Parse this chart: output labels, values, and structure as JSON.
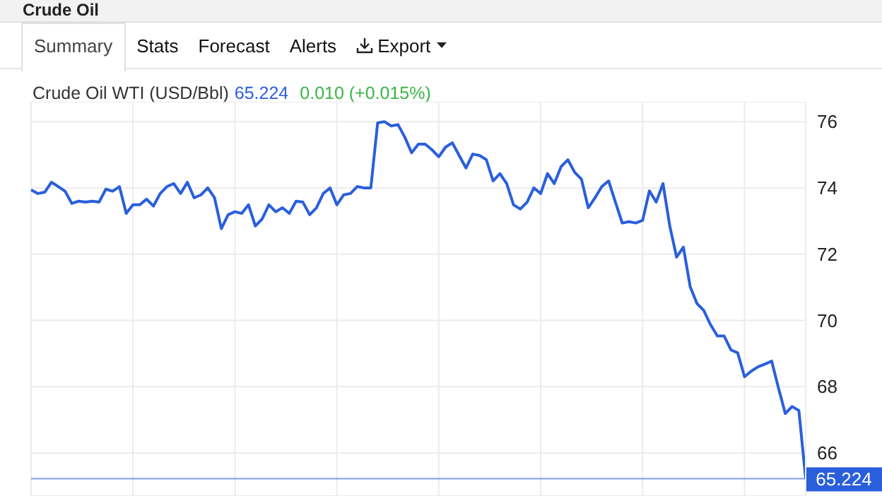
{
  "chart_data": {
    "type": "line",
    "title": "Crude Oil WTI (USD/Bbl)",
    "subtitle": "65.224",
    "annotations": [
      "Crude Oil",
      "Summary",
      "Stats",
      "Forecast",
      "Alerts",
      "Export",
      "0.010 (+0.015%)"
    ],
    "categories": [
      null,
      null,
      null,
      null,
      null,
      null,
      null,
      null,
      null,
      null,
      null,
      null,
      null,
      null,
      null,
      null,
      null,
      null,
      null,
      null,
      null,
      null,
      null,
      null,
      null,
      null,
      null,
      null,
      null,
      null,
      null,
      null,
      null,
      null,
      null,
      null,
      null,
      null,
      null,
      null,
      null,
      null,
      null,
      null,
      null,
      null,
      null,
      null,
      null,
      null,
      null,
      null,
      null,
      null,
      null,
      null,
      null,
      null,
      null,
      null,
      null,
      null,
      null,
      null,
      null,
      null,
      null,
      null,
      null,
      null,
      null,
      null,
      null,
      null,
      null,
      null,
      null,
      null,
      null,
      null,
      null,
      null,
      null,
      null,
      null,
      null,
      null,
      null,
      null,
      null,
      null,
      null,
      null,
      null,
      null,
      null,
      null,
      null,
      null,
      null,
      null,
      null,
      null,
      null,
      null,
      null,
      null,
      null,
      null,
      null,
      null,
      null,
      null,
      null,
      null
    ],
    "series": [
      {
        "color": "#2a5fdc",
        "values": [
          73.94,
          73.83,
          73.87,
          74.17,
          74.04,
          73.9,
          73.53,
          73.6,
          73.57,
          73.6,
          73.57,
          73.96,
          73.9,
          74.04,
          73.23,
          73.49,
          73.49,
          73.66,
          73.45,
          73.83,
          74.04,
          74.13,
          73.83,
          74.17,
          73.7,
          73.79,
          74.0,
          73.7,
          72.77,
          73.19,
          73.28,
          73.23,
          73.49,
          72.85,
          73.06,
          73.49,
          73.28,
          73.4,
          73.23,
          73.6,
          73.57,
          73.19,
          73.4,
          73.83,
          74.0,
          73.49,
          73.79,
          73.83,
          74.04,
          74.0,
          74.0,
          75.96,
          76.0,
          75.87,
          75.91,
          75.53,
          75.06,
          75.32,
          75.32,
          75.15,
          74.94,
          75.23,
          75.36,
          74.98,
          74.6,
          75.02,
          74.98,
          74.85,
          74.21,
          74.43,
          74.13,
          73.49,
          73.36,
          73.57,
          74.0,
          73.83,
          74.43,
          74.13,
          74.64,
          74.85,
          74.47,
          74.26,
          73.4,
          73.7,
          74.04,
          74.21,
          73.57,
          72.94,
          72.98,
          72.94,
          73.02,
          73.91,
          73.57,
          74.13,
          72.85,
          71.91,
          72.21,
          71.02,
          70.51,
          70.3,
          69.87,
          69.53,
          69.53,
          69.11,
          69.02,
          68.3,
          68.47,
          68.6,
          68.68,
          68.77,
          67.96,
          67.19,
          67.4,
          67.28,
          65.224
        ]
      }
    ],
    "ylim": [
      64.7,
      76.6
    ],
    "yticks": [
      66,
      68,
      70,
      72,
      74,
      76
    ],
    "tick_labels": "y",
    "grid": true,
    "marker": "none",
    "line_style": "solid",
    "ref_lines": [
      {
        "axis": "y",
        "value": 65.224,
        "label": "65.224",
        "color": "#2a5fdc"
      }
    ]
  }
}
